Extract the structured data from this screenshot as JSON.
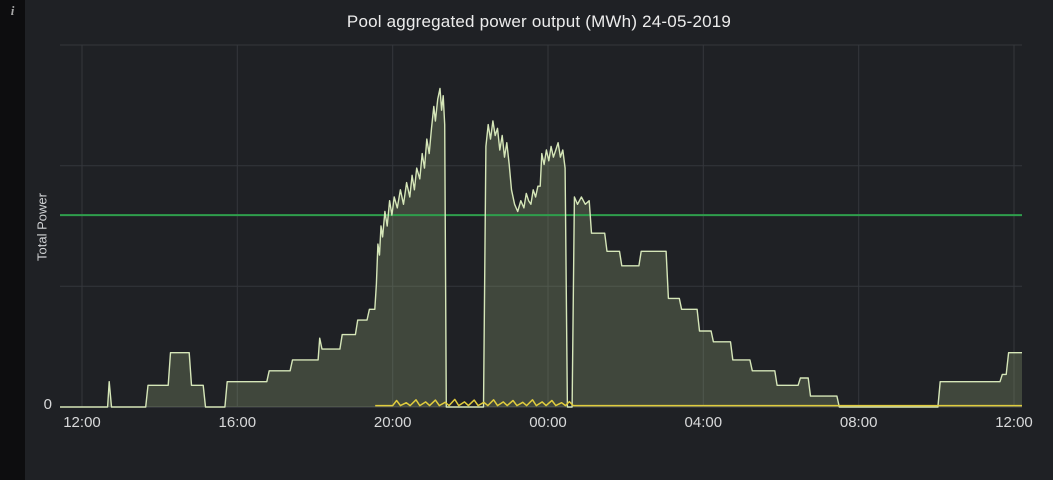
{
  "panel": {
    "title": "Pool aggregated power output (MWh) 24-05-2019",
    "info_icon": "i"
  },
  "chart_data": {
    "type": "area",
    "title": "Pool aggregated power output (MWh) 24-05-2019",
    "xlabel": "",
    "ylabel": "Total Power",
    "x_ticks": [
      "12:00",
      "16:00",
      "20:00",
      "00:00",
      "04:00",
      "08:00",
      "12:00"
    ],
    "x_range_hours": [
      0,
      24
    ],
    "ylim": [
      0,
      100
    ],
    "y_ticks": [
      {
        "value": 0,
        "label": "0"
      }
    ],
    "y_gridlines": [
      33.33,
      66.67,
      100
    ],
    "grid": true,
    "legend": "none",
    "threshold_line": {
      "value": 53,
      "color": "#2f9e4c"
    },
    "series": [
      {
        "id": "total-power",
        "type": "area",
        "color": "#d5e6b8",
        "fill": "rgba(150,172,122,0.28)",
        "points": [
          [
            0,
            0
          ],
          [
            0.66,
            0
          ],
          [
            0.7,
            7
          ],
          [
            0.76,
            0
          ],
          [
            1.64,
            0
          ],
          [
            1.7,
            6
          ],
          [
            2.22,
            6
          ],
          [
            2.28,
            15
          ],
          [
            2.76,
            15
          ],
          [
            2.82,
            6
          ],
          [
            3.12,
            6
          ],
          [
            3.18,
            0
          ],
          [
            3.68,
            0
          ],
          [
            3.74,
            7
          ],
          [
            4.76,
            7
          ],
          [
            4.82,
            10
          ],
          [
            5.36,
            10
          ],
          [
            5.42,
            13
          ],
          [
            6.08,
            13
          ],
          [
            6.12,
            19
          ],
          [
            6.18,
            16
          ],
          [
            6.64,
            16
          ],
          [
            6.7,
            20
          ],
          [
            7.04,
            20
          ],
          [
            7.1,
            24
          ],
          [
            7.34,
            24
          ],
          [
            7.4,
            27
          ],
          [
            7.54,
            27
          ],
          [
            7.58,
            34
          ],
          [
            7.62,
            45
          ],
          [
            7.66,
            42
          ],
          [
            7.7,
            50
          ],
          [
            7.74,
            47
          ],
          [
            7.8,
            54
          ],
          [
            7.86,
            50
          ],
          [
            7.92,
            57
          ],
          [
            7.98,
            53
          ],
          [
            8.04,
            58
          ],
          [
            8.12,
            55
          ],
          [
            8.2,
            60
          ],
          [
            8.28,
            56
          ],
          [
            8.36,
            62
          ],
          [
            8.44,
            58
          ],
          [
            8.5,
            64
          ],
          [
            8.56,
            60
          ],
          [
            8.62,
            66
          ],
          [
            8.7,
            63
          ],
          [
            8.76,
            70
          ],
          [
            8.82,
            66
          ],
          [
            8.88,
            74
          ],
          [
            8.94,
            70
          ],
          [
            9.0,
            77
          ],
          [
            9.06,
            83
          ],
          [
            9.1,
            79
          ],
          [
            9.16,
            85
          ],
          [
            9.22,
            88
          ],
          [
            9.26,
            82
          ],
          [
            9.3,
            86
          ],
          [
            9.34,
            78
          ],
          [
            9.38,
            0
          ],
          [
            10.34,
            0
          ],
          [
            10.4,
            72
          ],
          [
            10.46,
            78
          ],
          [
            10.52,
            74
          ],
          [
            10.58,
            79
          ],
          [
            10.64,
            75
          ],
          [
            10.7,
            77
          ],
          [
            10.76,
            71
          ],
          [
            10.82,
            75
          ],
          [
            10.88,
            69
          ],
          [
            10.94,
            73
          ],
          [
            11.0,
            67
          ],
          [
            11.06,
            60
          ],
          [
            11.14,
            56
          ],
          [
            11.22,
            54
          ],
          [
            11.3,
            57
          ],
          [
            11.38,
            55
          ],
          [
            11.44,
            59
          ],
          [
            11.5,
            57
          ],
          [
            11.56,
            56
          ],
          [
            11.62,
            60
          ],
          [
            11.68,
            58
          ],
          [
            11.74,
            61
          ],
          [
            11.8,
            61
          ],
          [
            11.84,
            70
          ],
          [
            11.9,
            67
          ],
          [
            11.96,
            71
          ],
          [
            12.02,
            68
          ],
          [
            12.08,
            72
          ],
          [
            12.14,
            69
          ],
          [
            12.2,
            71
          ],
          [
            12.26,
            73
          ],
          [
            12.32,
            69
          ],
          [
            12.38,
            71
          ],
          [
            12.44,
            66
          ],
          [
            12.5,
            0
          ],
          [
            12.62,
            0
          ],
          [
            12.68,
            58
          ],
          [
            12.76,
            56
          ],
          [
            12.86,
            58
          ],
          [
            12.96,
            56
          ],
          [
            13.06,
            57
          ],
          [
            13.12,
            48
          ],
          [
            13.46,
            48
          ],
          [
            13.52,
            43
          ],
          [
            13.84,
            43
          ],
          [
            13.9,
            39
          ],
          [
            14.34,
            39
          ],
          [
            14.4,
            43
          ],
          [
            15.04,
            43
          ],
          [
            15.1,
            30
          ],
          [
            15.38,
            30
          ],
          [
            15.44,
            27
          ],
          [
            15.84,
            27
          ],
          [
            15.9,
            21
          ],
          [
            16.2,
            21
          ],
          [
            16.26,
            18
          ],
          [
            16.7,
            18
          ],
          [
            16.76,
            13
          ],
          [
            17.2,
            13
          ],
          [
            17.26,
            10
          ],
          [
            17.84,
            10
          ],
          [
            17.9,
            6
          ],
          [
            18.44,
            6
          ],
          [
            18.5,
            8
          ],
          [
            18.7,
            8
          ],
          [
            18.76,
            3
          ],
          [
            19.44,
            3
          ],
          [
            19.5,
            0
          ],
          [
            22.04,
            0
          ],
          [
            22.1,
            7
          ],
          [
            23.64,
            7
          ],
          [
            23.7,
            9
          ],
          [
            23.8,
            9
          ],
          [
            23.86,
            15
          ],
          [
            24,
            15
          ]
        ]
      },
      {
        "id": "secondary",
        "type": "line",
        "color": "#e0cc3e",
        "fill": null,
        "points": [
          [
            7.55,
            0.4
          ],
          [
            8.0,
            0.4
          ],
          [
            8.1,
            1.8
          ],
          [
            8.2,
            0.4
          ],
          [
            8.35,
            1.2
          ],
          [
            8.45,
            0.4
          ],
          [
            8.6,
            2.0
          ],
          [
            8.7,
            0.4
          ],
          [
            8.85,
            1.4
          ],
          [
            8.95,
            0.4
          ],
          [
            9.1,
            1.9
          ],
          [
            9.2,
            0.4
          ],
          [
            9.35,
            1.3
          ],
          [
            9.45,
            0.4
          ],
          [
            9.6,
            2.1
          ],
          [
            9.7,
            0.4
          ],
          [
            9.85,
            1.4
          ],
          [
            9.95,
            0.4
          ],
          [
            10.1,
            1.9
          ],
          [
            10.2,
            0.4
          ],
          [
            10.35,
            1.3
          ],
          [
            10.45,
            0.4
          ],
          [
            10.6,
            2.0
          ],
          [
            10.7,
            0.4
          ],
          [
            10.85,
            1.4
          ],
          [
            10.95,
            0.4
          ],
          [
            11.1,
            1.8
          ],
          [
            11.2,
            0.4
          ],
          [
            11.35,
            1.3
          ],
          [
            11.45,
            0.4
          ],
          [
            11.6,
            2.0
          ],
          [
            11.7,
            0.4
          ],
          [
            11.85,
            1.4
          ],
          [
            11.95,
            0.4
          ],
          [
            12.1,
            1.8
          ],
          [
            12.2,
            0.4
          ],
          [
            12.35,
            1.2
          ],
          [
            12.45,
            0.4
          ],
          [
            12.55,
            1.5
          ],
          [
            12.65,
            0.4
          ],
          [
            24,
            0.4
          ]
        ]
      }
    ]
  },
  "colors": {
    "panel_bg": "#1f2125",
    "strip_bg": "#0d0d0f",
    "gridline": "#34373c",
    "axis_text": "#d8d9da",
    "title_text": "#ececec",
    "threshold_green": "#2f9e4c",
    "series_line": "#d5e6b8",
    "secondary_yellow": "#e0cc3e"
  }
}
